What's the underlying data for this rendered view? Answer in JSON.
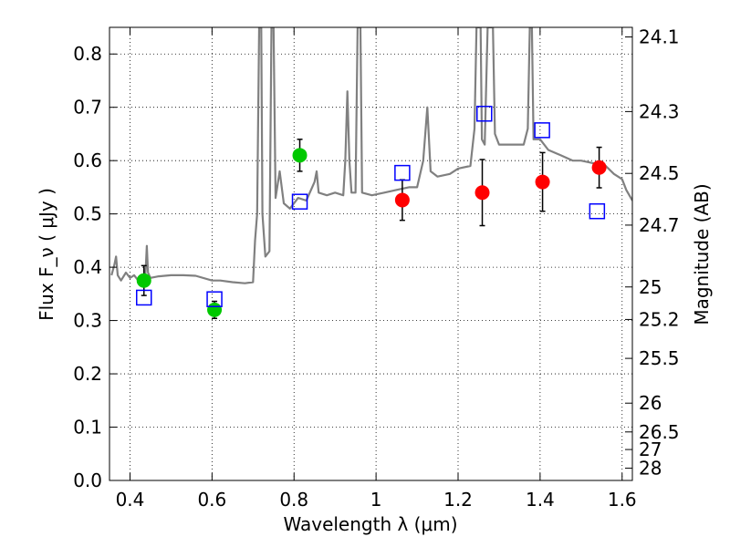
{
  "chart_data": {
    "type": "scatter",
    "xlabel": "Wavelength  λ (μm)",
    "ylabel": "Flux  F_ν  ( μJy )",
    "ylabel_right": "Magnitude (AB)",
    "xlim": [
      0.35,
      1.625
    ],
    "ylim": [
      0.0,
      0.85
    ],
    "grid": true,
    "x_ticks": [
      "0.4",
      "0.6",
      "0.8",
      "1",
      "1.2",
      "1.4",
      "1.6"
    ],
    "x_tick_values": [
      0.4,
      0.6,
      0.8,
      1.0,
      1.2,
      1.4,
      1.6
    ],
    "y_ticks": [
      "0.0",
      "0.1",
      "0.2",
      "0.3",
      "0.4",
      "0.5",
      "0.6",
      "0.7",
      "0.8"
    ],
    "y_tick_values": [
      0.0,
      0.1,
      0.2,
      0.3,
      0.4,
      0.5,
      0.6,
      0.7,
      0.8
    ],
    "right_ticks": [
      {
        "label": "24.1",
        "flux": 0.832
      },
      {
        "label": "24.3",
        "flux": 0.692
      },
      {
        "label": "24.5",
        "flux": 0.576
      },
      {
        "label": "24.7",
        "flux": 0.479
      },
      {
        "label": "25",
        "flux": 0.363
      },
      {
        "label": "25.2",
        "flux": 0.302
      },
      {
        "label": "25.5",
        "flux": 0.229
      },
      {
        "label": "26",
        "flux": 0.145
      },
      {
        "label": "26.5",
        "flux": 0.091
      },
      {
        "label": "27",
        "flux": 0.058
      },
      {
        "label": "28",
        "flux": 0.023
      }
    ],
    "series": [
      {
        "kind": "spectrum",
        "color": "#808080",
        "points": [
          [
            0.355,
            0.385
          ],
          [
            0.362,
            0.405
          ],
          [
            0.366,
            0.42
          ],
          [
            0.37,
            0.385
          ],
          [
            0.378,
            0.375
          ],
          [
            0.39,
            0.39
          ],
          [
            0.4,
            0.38
          ],
          [
            0.41,
            0.385
          ],
          [
            0.42,
            0.375
          ],
          [
            0.43,
            0.375
          ],
          [
            0.438,
            0.39
          ],
          [
            0.441,
            0.44
          ],
          [
            0.444,
            0.39
          ],
          [
            0.45,
            0.38
          ],
          [
            0.47,
            0.383
          ],
          [
            0.5,
            0.385
          ],
          [
            0.53,
            0.385
          ],
          [
            0.56,
            0.384
          ],
          [
            0.6,
            0.375
          ],
          [
            0.62,
            0.375
          ],
          [
            0.65,
            0.372
          ],
          [
            0.68,
            0.37
          ],
          [
            0.7,
            0.372
          ],
          [
            0.705,
            0.45
          ],
          [
            0.71,
            0.5
          ],
          [
            0.715,
            0.85
          ],
          [
            0.72,
            0.85
          ],
          [
            0.723,
            0.5
          ],
          [
            0.73,
            0.42
          ],
          [
            0.74,
            0.43
          ],
          [
            0.745,
            0.85
          ],
          [
            0.75,
            0.85
          ],
          [
            0.755,
            0.53
          ],
          [
            0.765,
            0.58
          ],
          [
            0.775,
            0.52
          ],
          [
            0.79,
            0.51
          ],
          [
            0.81,
            0.53
          ],
          [
            0.83,
            0.525
          ],
          [
            0.85,
            0.56
          ],
          [
            0.855,
            0.58
          ],
          [
            0.86,
            0.54
          ],
          [
            0.88,
            0.535
          ],
          [
            0.9,
            0.54
          ],
          [
            0.92,
            0.535
          ],
          [
            0.925,
            0.6
          ],
          [
            0.93,
            0.73
          ],
          [
            0.935,
            0.6
          ],
          [
            0.94,
            0.54
          ],
          [
            0.95,
            0.54
          ],
          [
            0.955,
            0.85
          ],
          [
            0.962,
            0.85
          ],
          [
            0.966,
            0.54
          ],
          [
            0.99,
            0.535
          ],
          [
            1.02,
            0.54
          ],
          [
            1.05,
            0.545
          ],
          [
            1.08,
            0.55
          ],
          [
            1.1,
            0.55
          ],
          [
            1.115,
            0.6
          ],
          [
            1.125,
            0.7
          ],
          [
            1.133,
            0.58
          ],
          [
            1.15,
            0.57
          ],
          [
            1.18,
            0.575
          ],
          [
            1.2,
            0.585
          ],
          [
            1.23,
            0.59
          ],
          [
            1.24,
            0.66
          ],
          [
            1.245,
            0.85
          ],
          [
            1.255,
            0.85
          ],
          [
            1.258,
            0.64
          ],
          [
            1.265,
            0.63
          ],
          [
            1.272,
            0.85
          ],
          [
            1.285,
            0.85
          ],
          [
            1.29,
            0.65
          ],
          [
            1.3,
            0.63
          ],
          [
            1.33,
            0.63
          ],
          [
            1.36,
            0.63
          ],
          [
            1.37,
            0.66
          ],
          [
            1.375,
            0.85
          ],
          [
            1.38,
            0.85
          ],
          [
            1.384,
            0.64
          ],
          [
            1.4,
            0.64
          ],
          [
            1.42,
            0.62
          ],
          [
            1.45,
            0.61
          ],
          [
            1.48,
            0.6
          ],
          [
            1.5,
            0.6
          ],
          [
            1.53,
            0.595
          ],
          [
            1.56,
            0.59
          ],
          [
            1.58,
            0.575
          ],
          [
            1.6,
            0.565
          ],
          [
            1.61,
            0.545
          ],
          [
            1.625,
            0.525
          ]
        ]
      },
      {
        "kind": "points",
        "marker": "circle",
        "color": "#00c800",
        "points": [
          {
            "x": 0.434,
            "y": 0.375,
            "err": 0.028
          },
          {
            "x": 0.606,
            "y": 0.32,
            "err": 0.016
          },
          {
            "x": 0.814,
            "y": 0.61,
            "err": 0.03
          }
        ]
      },
      {
        "kind": "points",
        "marker": "circle",
        "color": "#ff0000",
        "points": [
          {
            "x": 1.064,
            "y": 0.526,
            "err": 0.038
          },
          {
            "x": 1.259,
            "y": 0.54,
            "err": 0.062
          },
          {
            "x": 1.406,
            "y": 0.56,
            "err": 0.055
          },
          {
            "x": 1.544,
            "y": 0.587,
            "err": 0.038
          }
        ]
      },
      {
        "kind": "points",
        "marker": "square-open",
        "color": "#0000ff",
        "points": [
          {
            "x": 0.434,
            "y": 0.343
          },
          {
            "x": 0.606,
            "y": 0.34
          },
          {
            "x": 0.814,
            "y": 0.523
          },
          {
            "x": 1.064,
            "y": 0.577
          },
          {
            "x": 1.264,
            "y": 0.688
          },
          {
            "x": 1.405,
            "y": 0.657
          },
          {
            "x": 1.539,
            "y": 0.505
          }
        ]
      }
    ]
  }
}
